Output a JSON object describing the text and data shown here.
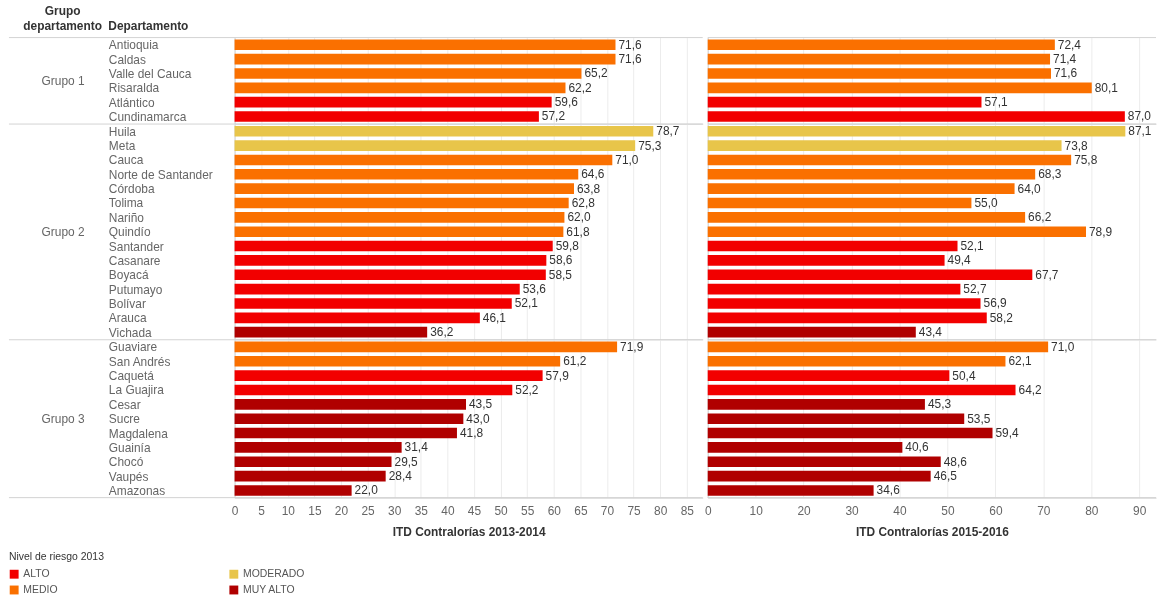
{
  "chart_data": [
    {
      "type": "bar",
      "orientation": "horizontal",
      "stacked": true,
      "ylabel": "Grupo 1",
      "annotations": [
        "Grupo departamento",
        "Departamento"
      ],
      "tick_labels": "y",
      "categories": [
        "Antioquia",
        "Caldas",
        "Valle del Cauca",
        "Risaralda",
        "Atlántico",
        "Cundinamarca"
      ],
      "xlim": [
        0,
        88
      ],
      "xticks": [
        0,
        5,
        10,
        15,
        20,
        25,
        30,
        35,
        40,
        45,
        50,
        55,
        60,
        65,
        70,
        75,
        80,
        85
      ],
      "grid": "x",
      "legend": "bottom left",
      "legend_title": "Nivel de riesgo 2013",
      "series": [
        {
          "name": "ALTO",
          "color": "#f20000",
          "values": [
            null,
            null,
            null,
            null,
            59.6,
            57.2
          ],
          "value_labels": [
            null,
            null,
            null,
            null,
            "59,6",
            "57,2"
          ]
        },
        {
          "name": "MEDIO",
          "color": "#fa7000",
          "values": [
            71.6,
            71.6,
            65.2,
            62.2,
            null,
            null
          ],
          "value_labels": [
            "71,6",
            "71,6",
            "65,2",
            "62,2",
            null,
            null
          ]
        },
        {
          "name": "MODERADO",
          "color": "#e8c54a",
          "values": [
            null,
            null,
            null,
            null,
            null,
            null
          ]
        },
        {
          "name": "MUY ALTO",
          "color": "#b00000",
          "values": [
            null,
            null,
            null,
            null,
            null,
            null
          ]
        }
      ]
    },
    {
      "type": "bar",
      "orientation": "horizontal",
      "stacked": true,
      "tick_labels": false,
      "categories": [
        "Antioquia",
        "Caldas",
        "Valle del Cauca",
        "Risaralda",
        "Atlántico",
        "Cundinamarca"
      ],
      "xlim": [
        0,
        93.5
      ],
      "xticks": [
        0,
        10,
        20,
        30,
        40,
        50,
        60,
        70,
        80,
        90
      ],
      "grid": "x",
      "series": [
        {
          "color": "#f20000",
          "values": [
            null,
            null,
            null,
            null,
            57.1,
            87.0
          ],
          "value_labels": [
            null,
            null,
            null,
            null,
            "57,1",
            "87,0"
          ]
        },
        {
          "color": "#fa7000",
          "values": [
            72.4,
            71.4,
            71.6,
            80.1,
            null,
            null
          ],
          "value_labels": [
            "72,4",
            "71,4",
            "71,6",
            "80,1",
            null,
            null
          ]
        }
      ]
    },
    {
      "type": "bar",
      "orientation": "horizontal",
      "stacked": true,
      "ylabel": "Grupo 2",
      "tick_labels": "y",
      "categories": [
        "Huila",
        "Meta",
        "Cauca",
        "Norte de Santander",
        "Córdoba",
        "Tolima",
        "Nariño",
        "Quindío",
        "Santander",
        "Casanare",
        "Boyacá",
        "Putumayo",
        "Bolívar",
        "Arauca",
        "Vichada"
      ],
      "xlim": [
        0,
        88
      ],
      "xticks": [
        0,
        5,
        10,
        15,
        20,
        25,
        30,
        35,
        40,
        45,
        50,
        55,
        60,
        65,
        70,
        75,
        80,
        85
      ],
      "grid": "x",
      "series": [
        {
          "color": "#f20000",
          "values": [
            null,
            null,
            null,
            null,
            null,
            null,
            null,
            null,
            59.8,
            58.6,
            58.5,
            53.6,
            52.1,
            46.1,
            null
          ],
          "value_labels": [
            null,
            null,
            null,
            null,
            null,
            null,
            null,
            null,
            "59,8",
            "58,6",
            "58,5",
            "53,6",
            "52,1",
            "46,1",
            null
          ]
        },
        {
          "color": "#fa7000",
          "values": [
            null,
            null,
            71.0,
            64.6,
            63.8,
            62.8,
            62.0,
            61.8,
            null,
            null,
            null,
            null,
            null,
            null,
            null
          ],
          "value_labels": [
            null,
            null,
            "71,0",
            "64,6",
            "63,8",
            "62,8",
            "62,0",
            "61,8",
            null,
            null,
            null,
            null,
            null,
            null,
            null
          ]
        },
        {
          "color": "#e8c54a",
          "values": [
            78.7,
            75.3,
            null,
            null,
            null,
            null,
            null,
            null,
            null,
            null,
            null,
            null,
            null,
            null,
            null
          ],
          "value_labels": [
            "78,7",
            "75,3",
            null,
            null,
            null,
            null,
            null,
            null,
            null,
            null,
            null,
            null,
            null,
            null,
            null
          ]
        },
        {
          "color": "#b00000",
          "values": [
            null,
            null,
            null,
            null,
            null,
            null,
            null,
            null,
            null,
            null,
            null,
            null,
            null,
            null,
            36.2
          ],
          "value_labels": [
            null,
            null,
            null,
            null,
            null,
            null,
            null,
            null,
            null,
            null,
            null,
            null,
            null,
            null,
            "36,2"
          ]
        }
      ]
    },
    {
      "type": "bar",
      "orientation": "horizontal",
      "stacked": true,
      "tick_labels": false,
      "categories": [
        "Huila",
        "Meta",
        "Cauca",
        "Norte de Santander",
        "Córdoba",
        "Tolima",
        "Nariño",
        "Quindío",
        "Santander",
        "Casanare",
        "Boyacá",
        "Putumayo",
        "Bolívar",
        "Arauca",
        "Vichada"
      ],
      "xlim": [
        0,
        93.5
      ],
      "xticks": [
        0,
        10,
        20,
        30,
        40,
        50,
        60,
        70,
        80,
        90
      ],
      "grid": "x",
      "series": [
        {
          "color": "#f20000",
          "values": [
            null,
            null,
            null,
            null,
            null,
            null,
            null,
            null,
            52.1,
            49.4,
            67.7,
            52.7,
            56.9,
            58.2,
            null
          ],
          "value_labels": [
            null,
            null,
            null,
            null,
            null,
            null,
            null,
            null,
            "52,1",
            "49,4",
            "67,7",
            "52,7",
            "56,9",
            "58,2",
            null
          ]
        },
        {
          "color": "#fa7000",
          "values": [
            null,
            null,
            75.8,
            68.3,
            64.0,
            55.0,
            66.2,
            78.9,
            null,
            null,
            null,
            null,
            null,
            null,
            null
          ],
          "value_labels": [
            null,
            null,
            "75,8",
            "68,3",
            "64,0",
            "55,0",
            "66,2",
            "78,9",
            null,
            null,
            null,
            null,
            null,
            null,
            null
          ]
        },
        {
          "color": "#e8c54a",
          "values": [
            87.1,
            73.8,
            null,
            null,
            null,
            null,
            null,
            null,
            null,
            null,
            null,
            null,
            null,
            null,
            null
          ],
          "value_labels": [
            "87,1",
            "73,8",
            null,
            null,
            null,
            null,
            null,
            null,
            null,
            null,
            null,
            null,
            null,
            null,
            null
          ]
        },
        {
          "color": "#b00000",
          "values": [
            null,
            null,
            null,
            null,
            null,
            null,
            null,
            null,
            null,
            null,
            null,
            null,
            null,
            null,
            43.4
          ],
          "value_labels": [
            null,
            null,
            null,
            null,
            null,
            null,
            null,
            null,
            null,
            null,
            null,
            null,
            null,
            null,
            "43,4"
          ]
        }
      ]
    },
    {
      "type": "bar",
      "orientation": "horizontal",
      "stacked": true,
      "ylabel": "Grupo 3",
      "xlabel": "ITD Contralorías 2013-2014",
      "categories": [
        "Guaviare",
        "San Andrés",
        "Caquetá",
        "La Guajira",
        "Cesar",
        "Sucre",
        "Magdalena",
        "Guainía",
        "Chocó",
        "Vaupés",
        "Amazonas"
      ],
      "xlim": [
        0,
        88
      ],
      "xticks": [
        0,
        5,
        10,
        15,
        20,
        25,
        30,
        35,
        40,
        45,
        50,
        55,
        60,
        65,
        70,
        75,
        80,
        85
      ],
      "grid": "x",
      "series": [
        {
          "color": "#f20000",
          "values": [
            null,
            null,
            57.9,
            52.2,
            null,
            null,
            null,
            null,
            null,
            null,
            null
          ],
          "value_labels": [
            null,
            null,
            "57,9",
            "52,2",
            null,
            null,
            null,
            null,
            null,
            null,
            null
          ]
        },
        {
          "color": "#fa7000",
          "values": [
            71.9,
            61.2,
            null,
            null,
            null,
            null,
            null,
            null,
            null,
            null,
            null
          ],
          "value_labels": [
            "71,9",
            "61,2",
            null,
            null,
            null,
            null,
            null,
            null,
            null,
            null,
            null
          ]
        },
        {
          "color": "#b00000",
          "values": [
            null,
            null,
            null,
            null,
            43.5,
            43.0,
            41.8,
            31.4,
            29.5,
            28.4,
            22.0
          ],
          "value_labels": [
            null,
            null,
            null,
            null,
            "43,5",
            "43,0",
            "41,8",
            "31,4",
            "29,5",
            "28,4",
            "22,0"
          ]
        }
      ]
    },
    {
      "type": "bar",
      "orientation": "horizontal",
      "stacked": true,
      "xlabel": "ITD Contralorías 2015-2016",
      "tick_labels": "x",
      "categories": [
        "Guaviare",
        "San Andrés",
        "Caquetá",
        "La Guajira",
        "Cesar",
        "Sucre",
        "Magdalena",
        "Guainía",
        "Chocó",
        "Vaupés",
        "Amazonas"
      ],
      "xlim": [
        0,
        93.5
      ],
      "xticks": [
        0,
        10,
        20,
        30,
        40,
        50,
        60,
        70,
        80,
        90
      ],
      "grid": "x",
      "series": [
        {
          "color": "#f20000",
          "values": [
            null,
            null,
            50.4,
            64.2,
            null,
            null,
            null,
            null,
            null,
            null,
            null
          ],
          "value_labels": [
            null,
            null,
            "50,4",
            "64,2",
            null,
            null,
            null,
            null,
            null,
            null,
            null
          ]
        },
        {
          "color": "#fa7000",
          "values": [
            71.0,
            62.1,
            null,
            null,
            null,
            null,
            null,
            null,
            null,
            null,
            null
          ],
          "value_labels": [
            "71,0",
            "62,1",
            null,
            null,
            null,
            null,
            null,
            null,
            null,
            null,
            null
          ]
        },
        {
          "color": "#b00000",
          "values": [
            null,
            null,
            null,
            null,
            45.3,
            53.5,
            59.4,
            40.6,
            48.6,
            46.5,
            34.6
          ],
          "value_labels": [
            null,
            null,
            null,
            null,
            "45,3",
            "53,5",
            "59,4",
            "40,6",
            "48,6",
            "46,5",
            "34,6"
          ]
        }
      ]
    }
  ]
}
